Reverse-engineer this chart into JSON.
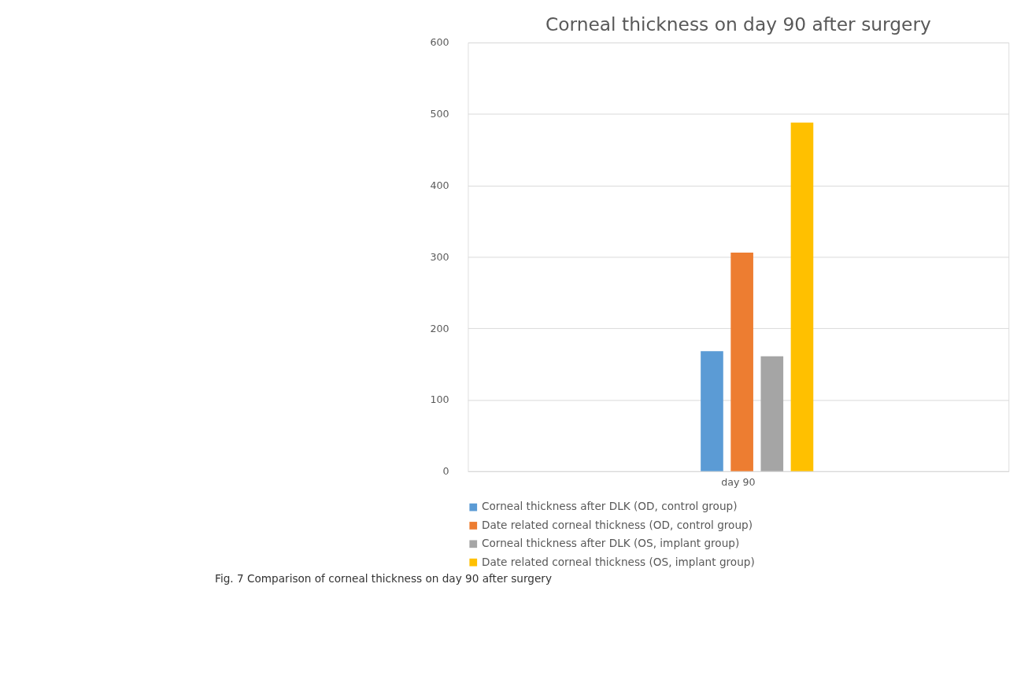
{
  "chart_data": {
    "type": "bar",
    "title": "Corneal thickness on day 90 after surgery",
    "categories": [
      "day 90"
    ],
    "series": [
      {
        "name": "Corneal thickness after DLK (OD, control group)",
        "color": "#5b9bd5",
        "values": [
          168
        ]
      },
      {
        "name": "Date related corneal thickness (OD, control group)",
        "color": "#ed7d31",
        "values": [
          306
        ]
      },
      {
        "name": "Corneal thickness after DLK (OS, implant group)",
        "color": "#a5a5a5",
        "values": [
          161
        ]
      },
      {
        "name": "Date related corneal thickness (OS, implant group)",
        "color": "#ffc000",
        "values": [
          488
        ]
      }
    ],
    "ylim": [
      0,
      600
    ],
    "yticks": [
      0,
      100,
      200,
      300,
      400,
      500,
      600
    ],
    "grid": "y",
    "legend": "bottom",
    "annotations": [
      "Fig. 7 Comparison of corneal thickness on day 90 after surgery"
    ]
  }
}
